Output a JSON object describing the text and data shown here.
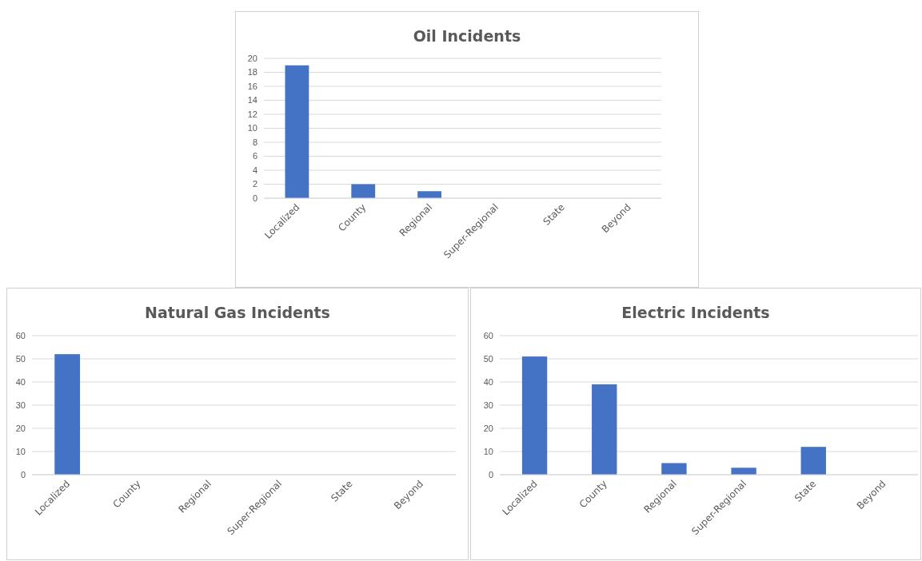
{
  "chart_data": [
    {
      "type": "bar",
      "title": "Oil Incidents",
      "categories": [
        "Localized",
        "County",
        "Regional",
        "Super-Regional",
        "State",
        "Beyond"
      ],
      "values": [
        19,
        2,
        1,
        0,
        0,
        0
      ],
      "color": "#4472c4",
      "ylim": [
        0,
        20
      ],
      "yticks": [
        0,
        2,
        4,
        6,
        8,
        10,
        12,
        14,
        16,
        18,
        20
      ],
      "grid": "y"
    },
    {
      "type": "bar",
      "title": "Natural Gas Incidents",
      "categories": [
        "Localized",
        "County",
        "Regional",
        "Super-Regional",
        "State",
        "Beyond"
      ],
      "values": [
        52,
        0,
        0,
        0,
        0,
        0
      ],
      "color": "#4472c4",
      "ylim": [
        0,
        60
      ],
      "yticks": [
        0,
        10,
        20,
        30,
        40,
        50,
        60
      ],
      "grid": "y"
    },
    {
      "type": "bar",
      "title": "Electric Incidents",
      "categories": [
        "Localized",
        "County",
        "Regional",
        "Super-Regional",
        "State",
        "Beyond"
      ],
      "values": [
        51,
        39,
        5,
        3,
        12,
        0
      ],
      "color": "#4472c4",
      "ylim": [
        0,
        60
      ],
      "yticks": [
        0,
        10,
        20,
        30,
        40,
        50,
        60
      ],
      "grid": "y"
    }
  ]
}
